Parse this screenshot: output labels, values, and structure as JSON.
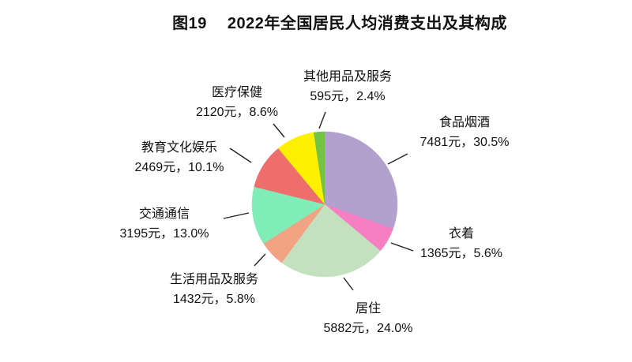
{
  "header": {
    "figure_label": "图19",
    "title": "2022年全国居民人均消费支出及其构成"
  },
  "chart_data": {
    "type": "pie",
    "title": "图19 2022年全国居民人均消费支出及其构成",
    "unit": "元",
    "rotation": "starts at 12 o'clock, clockwise",
    "legend_position": "none (outside callout labels with leader lines)",
    "total_percent": 100.0,
    "slices": [
      {
        "id": "food-tobacco-alcohol",
        "label": "食品烟酒",
        "value_yuan": 7481,
        "percent": 30.5,
        "color": "#b2a1cf",
        "detail": "7481元，30.5%"
      },
      {
        "id": "clothing",
        "label": "衣着",
        "value_yuan": 1365,
        "percent": 5.6,
        "color": "#f67fc3",
        "detail": "1365元，5.6%"
      },
      {
        "id": "housing",
        "label": "居住",
        "value_yuan": 5882,
        "percent": 24.0,
        "color": "#c3e1bf",
        "detail": "5882元，24.0%"
      },
      {
        "id": "household-goods-services",
        "label": "生活用品及服务",
        "value_yuan": 1432,
        "percent": 5.8,
        "color": "#f2a384",
        "detail": "1432元，5.8%"
      },
      {
        "id": "transport-communication",
        "label": "交通通信",
        "value_yuan": 3195,
        "percent": 13.0,
        "color": "#80edb9",
        "detail": "3195元，13.0%"
      },
      {
        "id": "education-culture-entertainment",
        "label": "教育文化娱乐",
        "value_yuan": 2469,
        "percent": 10.1,
        "color": "#ee6e6e",
        "detail": "2469元，10.1%"
      },
      {
        "id": "healthcare",
        "label": "医疗保健",
        "value_yuan": 2120,
        "percent": 8.6,
        "color": "#fef000",
        "detail": "2120元，8.6%"
      },
      {
        "id": "other-goods-services",
        "label": "其他用品及服务",
        "value_yuan": 595,
        "percent": 2.4,
        "color": "#74c343",
        "detail": "595元，2.4%"
      }
    ]
  }
}
